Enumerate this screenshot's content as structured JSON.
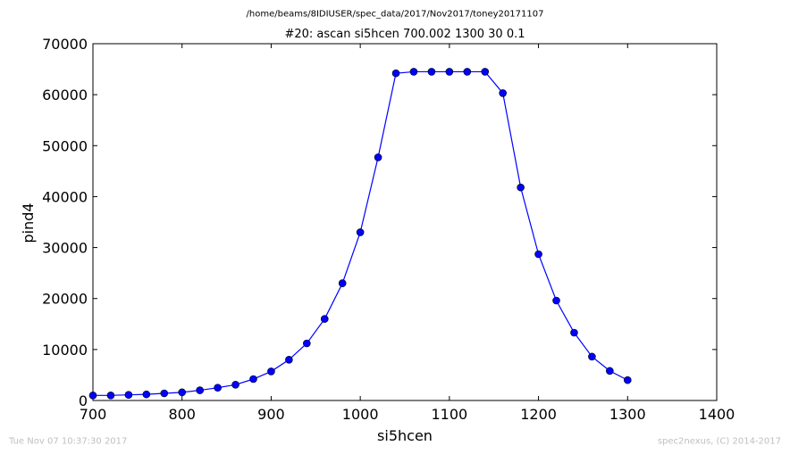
{
  "header": {
    "path": "/home/beams/8IDIUSER/spec_data/2017/Nov2017/toney20171107",
    "title": "#20: ascan  si5hcen 700.002 1300  30 0.1"
  },
  "footer": {
    "timestamp": "Tue Nov 07 10:37:30 2017",
    "credit": "spec2nexus, (C) 2014-2017"
  },
  "colors": {
    "series": "#0000ff",
    "axes": "#000000",
    "footer_text": "#bfbfbf"
  },
  "chart_data": {
    "type": "line",
    "title": "#20: ascan  si5hcen 700.002 1300  30 0.1",
    "xlabel": "si5hcen",
    "ylabel": "pind4",
    "xlim": [
      700,
      1400
    ],
    "ylim": [
      0,
      70000
    ],
    "xticks": [
      700,
      800,
      900,
      1000,
      1100,
      1200,
      1300,
      1400
    ],
    "yticks": [
      0,
      10000,
      20000,
      30000,
      40000,
      50000,
      60000,
      70000
    ],
    "grid": false,
    "legend": "none",
    "markers": true,
    "series": [
      {
        "x": [
          700,
          720,
          740,
          760,
          780,
          800,
          820,
          840,
          860,
          880,
          900,
          920,
          940,
          960,
          980,
          1000,
          1020,
          1040,
          1060,
          1080,
          1100,
          1120,
          1140,
          1160,
          1180,
          1200,
          1220,
          1240,
          1260,
          1280,
          1300
        ],
        "y": [
          1000,
          1000,
          1100,
          1200,
          1400,
          1600,
          2000,
          2500,
          3100,
          4200,
          5700,
          8000,
          11200,
          16000,
          23000,
          33000,
          47700,
          64200,
          64500,
          64500,
          64500,
          64500,
          64500,
          60300,
          41800,
          28700,
          19600,
          13300,
          8600,
          5800,
          4000
        ]
      }
    ]
  }
}
